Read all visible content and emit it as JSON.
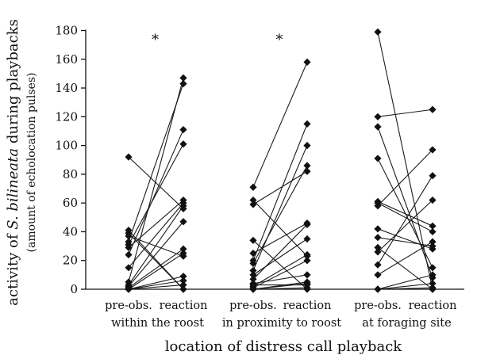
{
  "chart_data": {
    "type": "scatter",
    "ylabel": {
      "main_prefix": "activity of ",
      "main_species": "S. bilineata",
      "main_suffix": " during playbacks",
      "sub": "(amount of echolocation pulses)"
    },
    "xlabel": "location of distress call playback",
    "ylim": [
      0,
      180
    ],
    "yticks": [
      0,
      20,
      40,
      60,
      80,
      100,
      120,
      140,
      160,
      180
    ],
    "groups": [
      {
        "pre_label": "pre-obs.",
        "reaction_label": "reaction",
        "location": "within the roost",
        "significance": "*",
        "pairs": [
          [
            92,
            56
          ],
          [
            41,
            0
          ],
          [
            39,
            0
          ],
          [
            37,
            23
          ],
          [
            33,
            143
          ],
          [
            31,
            101
          ],
          [
            29,
            62
          ],
          [
            24,
            111
          ],
          [
            15,
            60
          ],
          [
            5,
            147
          ],
          [
            3,
            58
          ],
          [
            2,
            47
          ],
          [
            1,
            28
          ],
          [
            0,
            25
          ],
          [
            0,
            9
          ],
          [
            0,
            6
          ],
          [
            0,
            3
          ]
        ]
      },
      {
        "pre_label": "pre-obs.",
        "reaction_label": "reaction",
        "location": "in proximity to roost",
        "significance": "*",
        "pairs": [
          [
            71,
            158
          ],
          [
            62,
            23
          ],
          [
            59,
            82
          ],
          [
            34,
            0
          ],
          [
            25,
            46
          ],
          [
            20,
            115
          ],
          [
            18,
            86
          ],
          [
            13,
            100
          ],
          [
            10,
            35
          ],
          [
            7,
            45
          ],
          [
            4,
            10
          ],
          [
            3,
            3
          ],
          [
            2,
            24
          ],
          [
            1,
            20
          ],
          [
            0,
            5
          ],
          [
            0,
            4
          ],
          [
            0,
            1
          ]
        ]
      },
      {
        "pre_label": "pre-obs.",
        "reaction_label": "reaction",
        "location": "at foraging site",
        "significance": "",
        "pairs": [
          [
            179,
            0
          ],
          [
            120,
            125
          ],
          [
            113,
            8
          ],
          [
            91,
            15
          ],
          [
            61,
            44
          ],
          [
            60,
            40
          ],
          [
            58,
            97
          ],
          [
            42,
            28
          ],
          [
            36,
            30
          ],
          [
            29,
            0
          ],
          [
            26,
            62
          ],
          [
            17,
            79
          ],
          [
            10,
            33
          ],
          [
            0,
            4
          ],
          [
            0,
            10
          ],
          [
            0,
            1
          ]
        ]
      }
    ]
  }
}
